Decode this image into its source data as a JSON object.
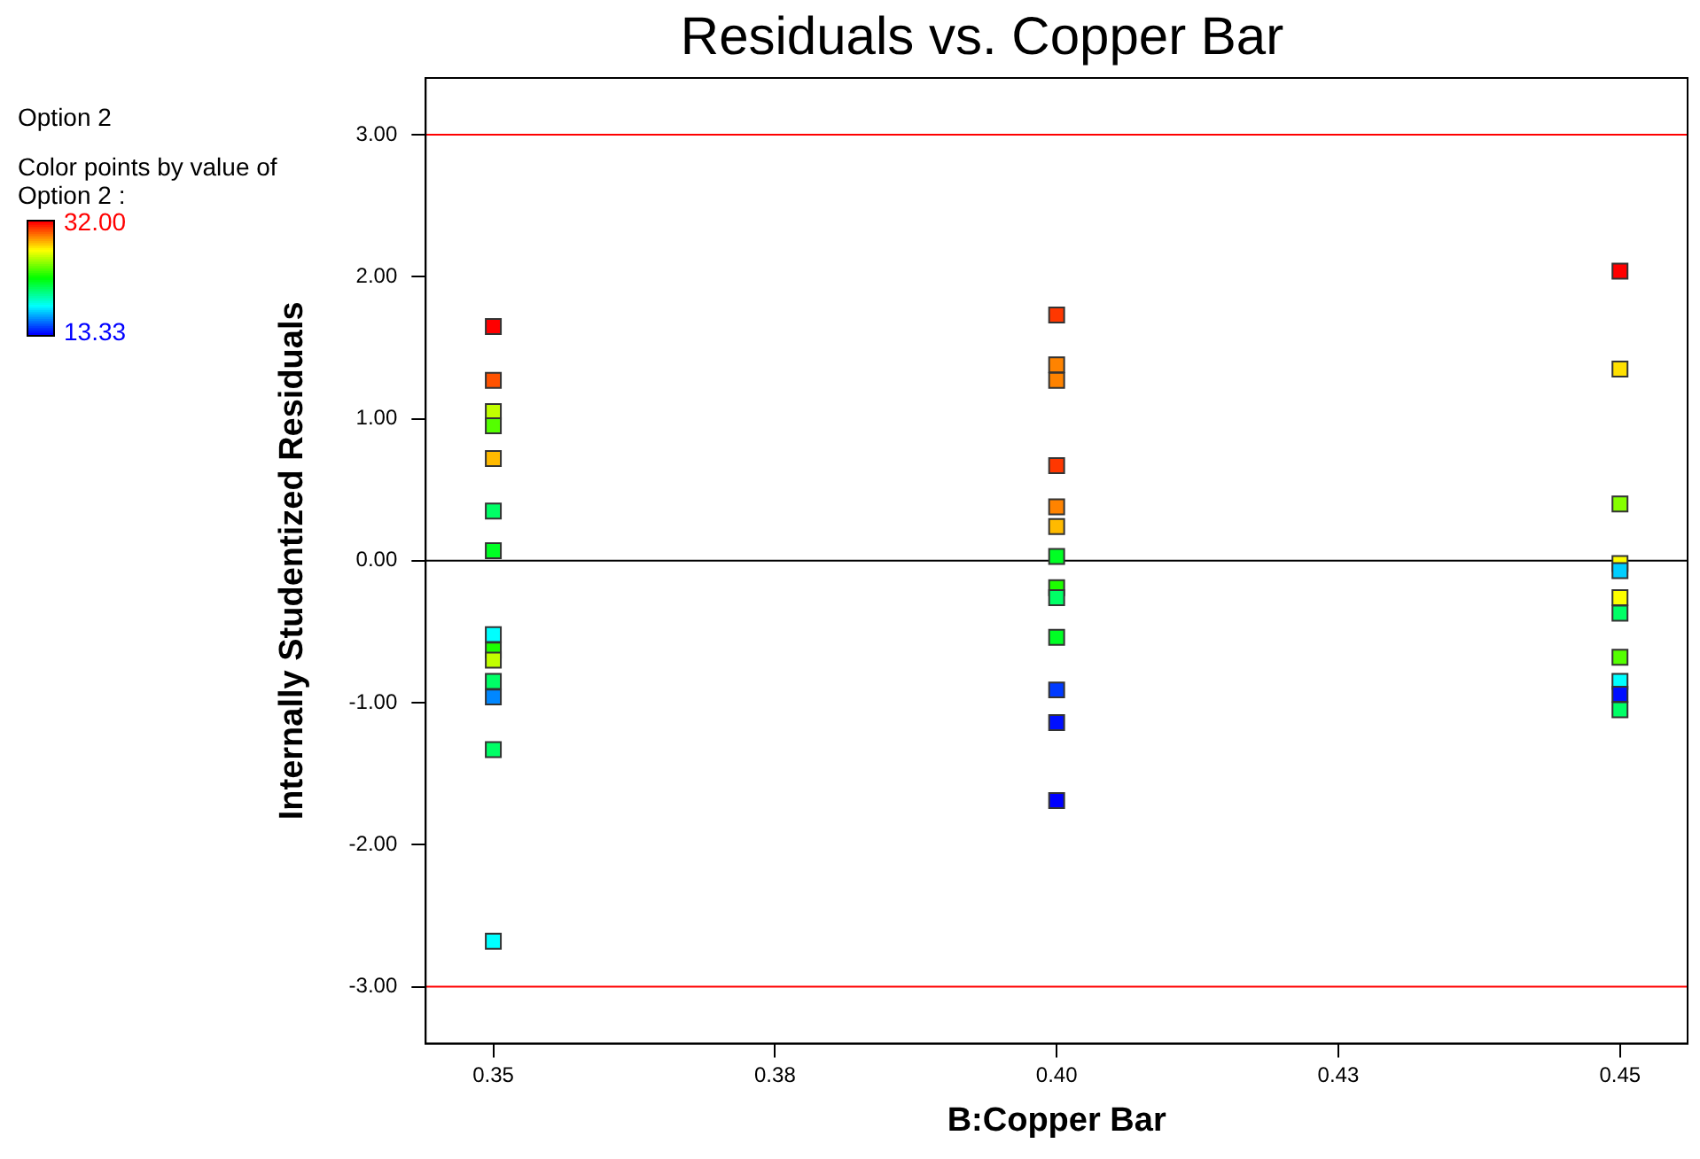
{
  "chart_data": {
    "type": "scatter",
    "title": "Residuals vs. Copper Bar",
    "xlabel": "B:Copper Bar",
    "ylabel": "Internally Studentized Residuals",
    "clabel": "Color points by value of Option 2 :",
    "annotations": [
      "Option 2"
    ],
    "series": [
      {
        "x": [
          0.35,
          0.35,
          0.35,
          0.35,
          0.35,
          0.35,
          0.35,
          0.35,
          0.35,
          0.35,
          0.35,
          0.35,
          0.35,
          0.35,
          0.4,
          0.4,
          0.4,
          0.4,
          0.4,
          0.4,
          0.4,
          0.4,
          0.4,
          0.4,
          0.4,
          0.4,
          0.4,
          0.45,
          0.45,
          0.45,
          0.45,
          0.45,
          0.45,
          0.45,
          0.45,
          0.45,
          0.45,
          0.45
        ],
        "values": [
          1.65,
          1.27,
          1.05,
          0.95,
          0.72,
          0.35,
          0.07,
          -0.52,
          -0.63,
          -0.7,
          -0.85,
          -0.96,
          -1.33,
          -2.68,
          1.73,
          1.38,
          1.27,
          0.67,
          0.38,
          0.24,
          0.03,
          -0.19,
          -0.26,
          -0.54,
          -0.91,
          -1.14,
          -1.69,
          2.04,
          1.35,
          0.4,
          -0.02,
          -0.07,
          -0.26,
          -0.37,
          -0.68,
          -0.85,
          -0.94,
          -1.05
        ],
        "cvalues": [
          32,
          30.5,
          26.2,
          24.2,
          28.6,
          20.8,
          22,
          18,
          23.2,
          26.2,
          20.8,
          15.8,
          20.8,
          18,
          31,
          29.6,
          29.6,
          31,
          29.6,
          28.6,
          22,
          23.2,
          20.8,
          22,
          14.4,
          13.6,
          13.33,
          32,
          27.9,
          25.1,
          27.3,
          17.1,
          27.3,
          20.8,
          24.2,
          18,
          13.6,
          20.8
        ]
      }
    ],
    "marker": "square",
    "xlim": [
      0.344,
      0.456
    ],
    "xticks": [
      0.35,
      {
        "value": 0.375,
        "label": "0.38"
      },
      {
        "value": 0.4,
        "label": "0.40"
      },
      {
        "value": 0.425,
        "label": "0.43"
      },
      0.45
    ],
    "ylim": [
      -3.4,
      3.4
    ],
    "yticks": [
      {
        "value": -3,
        "label": "-3.00"
      },
      {
        "value": -2,
        "label": "-2.00"
      },
      {
        "value": -1,
        "label": "-1.00"
      },
      {
        "value": 0,
        "label": "0.00"
      },
      {
        "value": 1,
        "label": "1.00"
      },
      {
        "value": 2,
        "label": "2.00"
      },
      {
        "value": 3,
        "label": "3.00"
      }
    ],
    "clim": [
      13.33,
      32
    ],
    "cticks": [
      {
        "value": 32,
        "label": "32.00"
      },
      {
        "value": 13.33,
        "label": "13.33"
      }
    ],
    "ref_lines": [
      {
        "axis": "y",
        "value": 3,
        "color": "#ff0000"
      },
      {
        "axis": "y",
        "value": 0,
        "color": "#000000"
      },
      {
        "axis": "y",
        "value": -3,
        "color": "#ff0000"
      }
    ],
    "grid": false,
    "legend": false
  }
}
